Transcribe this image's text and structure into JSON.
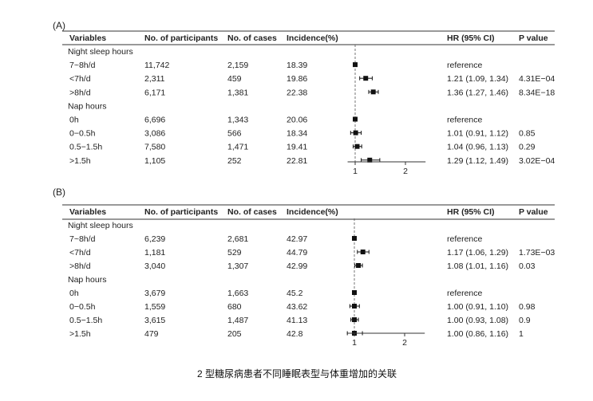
{
  "caption": "2 型糖尿病患者不同睡眠表型与体重增加的关联",
  "chart_data": [
    {
      "type": "forest",
      "panel_label": "(A)",
      "columns": [
        "Variables",
        "No. of participants",
        "No. of cases",
        "Incidence(%)",
        "HR (95% CI)",
        "P value"
      ],
      "x_ticks": [
        "1",
        "2"
      ],
      "reference_line": 1,
      "xlim": [
        0.85,
        2.4
      ],
      "rows": [
        {
          "kind": "group",
          "variable": "Night sleep hours"
        },
        {
          "kind": "data",
          "variable": "7~8h/d",
          "participants": "11,742",
          "cases": "2,159",
          "incidence": "18.39",
          "hr": 1.0,
          "lo": null,
          "hi": null,
          "hr_text": "reference",
          "p": ""
        },
        {
          "kind": "data",
          "variable": "<7h/d",
          "participants": "2,311",
          "cases": "459",
          "incidence": "19.86",
          "hr": 1.21,
          "lo": 1.09,
          "hi": 1.34,
          "hr_text": "1.21 (1.09, 1.34)",
          "p": "4.31E−04"
        },
        {
          "kind": "data",
          "variable": ">8h/d",
          "participants": "6,171",
          "cases": "1,381",
          "incidence": "22.38",
          "hr": 1.36,
          "lo": 1.27,
          "hi": 1.46,
          "hr_text": "1.36 (1.27, 1.46)",
          "p": "8.34E−18"
        },
        {
          "kind": "group",
          "variable": "Nap hours"
        },
        {
          "kind": "data",
          "variable": "0h",
          "participants": "6,696",
          "cases": "1,343",
          "incidence": "20.06",
          "hr": 1.0,
          "lo": null,
          "hi": null,
          "hr_text": "reference",
          "p": ""
        },
        {
          "kind": "data",
          "variable": "0−0.5h",
          "participants": "3,086",
          "cases": "566",
          "incidence": "18.34",
          "hr": 1.01,
          "lo": 0.91,
          "hi": 1.12,
          "hr_text": "1.01 (0.91, 1.12)",
          "p": "0.85"
        },
        {
          "kind": "data",
          "variable": "0.5−1.5h",
          "participants": "7,580",
          "cases": "1,471",
          "incidence": "19.41",
          "hr": 1.04,
          "lo": 0.96,
          "hi": 1.13,
          "hr_text": "1.04 (0.96, 1.13)",
          "p": "0.29"
        },
        {
          "kind": "data",
          "variable": ">1.5h",
          "participants": "1,105",
          "cases": "252",
          "incidence": "22.81",
          "hr": 1.29,
          "lo": 1.12,
          "hi": 1.49,
          "hr_text": "1.29 (1.12, 1.49)",
          "p": "3.02E−04"
        }
      ]
    },
    {
      "type": "forest",
      "panel_label": "(B)",
      "columns": [
        "Variables",
        "No. of participants",
        "No. of cases",
        "Incidence(%)",
        "HR (95% CI)",
        "P value"
      ],
      "x_ticks": [
        "1",
        "2"
      ],
      "reference_line": 1,
      "xlim": [
        0.85,
        2.4
      ],
      "rows": [
        {
          "kind": "group",
          "variable": "Night sleep hours"
        },
        {
          "kind": "data",
          "variable": "7~8h/d",
          "participants": "6,239",
          "cases": "2,681",
          "incidence": "42.97",
          "hr": 1.0,
          "lo": null,
          "hi": null,
          "hr_text": "reference",
          "p": ""
        },
        {
          "kind": "data",
          "variable": "<7h/d",
          "participants": "1,181",
          "cases": "529",
          "incidence": "44.79",
          "hr": 1.17,
          "lo": 1.06,
          "hi": 1.29,
          "hr_text": "1.17 (1.06, 1.29)",
          "p": "1.73E−03"
        },
        {
          "kind": "data",
          "variable": ">8h/d",
          "participants": "3,040",
          "cases": "1,307",
          "incidence": "42.99",
          "hr": 1.08,
          "lo": 1.01,
          "hi": 1.16,
          "hr_text": "1.08 (1.01, 1.16)",
          "p": "0.03"
        },
        {
          "kind": "group",
          "variable": "Nap hours"
        },
        {
          "kind": "data",
          "variable": "0h",
          "participants": "3,679",
          "cases": "1,663",
          "incidence": "45.2",
          "hr": 1.0,
          "lo": null,
          "hi": null,
          "hr_text": "reference",
          "p": ""
        },
        {
          "kind": "data",
          "variable": "0−0.5h",
          "participants": "1,559",
          "cases": "680",
          "incidence": "43.62",
          "hr": 1.0,
          "lo": 0.91,
          "hi": 1.1,
          "hr_text": "1.00 (0.91, 1.10)",
          "p": "0.98"
        },
        {
          "kind": "data",
          "variable": "0.5−1.5h",
          "participants": "3,615",
          "cases": "1,487",
          "incidence": "41.13",
          "hr": 1.0,
          "lo": 0.93,
          "hi": 1.08,
          "hr_text": "1.00 (0.93, 1.08)",
          "p": "0.9"
        },
        {
          "kind": "data",
          "variable": ">1.5h",
          "participants": "479",
          "cases": "205",
          "incidence": "42.8",
          "hr": 1.0,
          "lo": 0.86,
          "hi": 1.16,
          "hr_text": "1.00 (0.86, 1.16)",
          "p": "1"
        }
      ]
    }
  ]
}
